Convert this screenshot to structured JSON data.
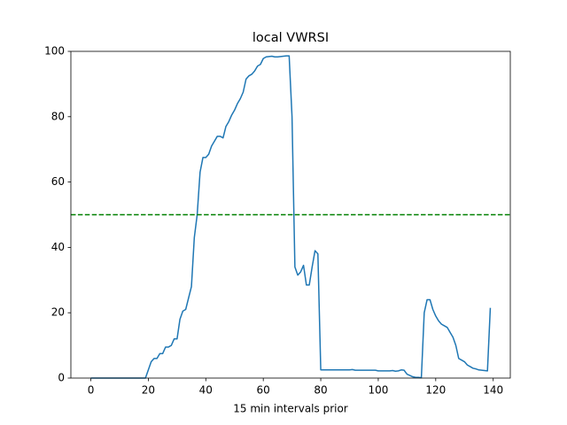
{
  "chart_data": {
    "type": "line",
    "title": "local VWRSI",
    "x_label": "15 min intervals prior",
    "x": [
      0,
      1,
      2,
      3,
      4,
      5,
      6,
      7,
      8,
      9,
      10,
      11,
      12,
      13,
      14,
      15,
      16,
      17,
      18,
      19,
      20,
      21,
      22,
      23,
      24,
      25,
      26,
      27,
      28,
      29,
      30,
      31,
      32,
      33,
      34,
      35,
      36,
      37,
      38,
      39,
      40,
      41,
      42,
      43,
      44,
      45,
      46,
      47,
      48,
      49,
      50,
      51,
      52,
      53,
      54,
      55,
      56,
      57,
      58,
      59,
      60,
      61,
      62,
      63,
      64,
      65,
      66,
      67,
      68,
      69,
      70,
      71,
      72,
      73,
      74,
      75,
      76,
      77,
      78,
      79,
      80,
      81,
      82,
      83,
      84,
      85,
      86,
      87,
      88,
      89,
      90,
      91,
      92,
      93,
      94,
      95,
      96,
      97,
      98,
      99,
      100,
      101,
      102,
      103,
      104,
      105,
      106,
      107,
      108,
      109,
      110,
      111,
      112,
      113,
      114,
      115,
      116,
      117,
      118,
      119,
      120,
      121,
      122,
      123,
      124,
      125,
      126,
      127,
      128,
      129,
      130,
      131,
      132,
      133,
      134,
      135,
      136,
      137,
      138,
      139
    ],
    "series": [
      {
        "color": "#1f77b4",
        "values": [
          0,
          0,
          0,
          0,
          0,
          0,
          0,
          0,
          0,
          0,
          0,
          0,
          0,
          0,
          0,
          0,
          0,
          0,
          0,
          0,
          2.5,
          5,
          6,
          6,
          7.5,
          7.5,
          9.5,
          9.5,
          10,
          12,
          12,
          18,
          20.5,
          21,
          24.5,
          28,
          43,
          50,
          63,
          67.5,
          67.5,
          68.5,
          71,
          72.5,
          74,
          74,
          73.5,
          77,
          78.5,
          80.5,
          82,
          84,
          85.5,
          87.5,
          91.5,
          92.5,
          93,
          94,
          95.5,
          96,
          97.8,
          98.3,
          98.4,
          98.5,
          98.3,
          98.3,
          98.4,
          98.5,
          98.6,
          98.6,
          80,
          34,
          31.5,
          32.5,
          34.5,
          28.5,
          28.5,
          34,
          39,
          38,
          2.5,
          2.5,
          2.5,
          2.5,
          2.5,
          2.5,
          2.5,
          2.5,
          2.5,
          2.5,
          2.5,
          2.6,
          2.4,
          2.4,
          2.4,
          2.4,
          2.4,
          2.4,
          2.4,
          2.4,
          2.2,
          2.2,
          2.2,
          2.2,
          2.2,
          2.3,
          2.1,
          2.2,
          2.5,
          2.4,
          1.2,
          0.8,
          0.4,
          0.2,
          0.2,
          0.1,
          20,
          24,
          24,
          21,
          19,
          17.5,
          16.5,
          16,
          15.5,
          14,
          12.5,
          10,
          6,
          5.5,
          5,
          4,
          3.5,
          3,
          2.8,
          2.5,
          2.4,
          2.3,
          2.2,
          21.5
        ]
      }
    ],
    "hline": {
      "value": 50,
      "color": "#008000",
      "style": "dashed"
    },
    "xlim": [
      -6.95,
      145.95
    ],
    "xticks": [
      0,
      20,
      40,
      60,
      80,
      100,
      120,
      140
    ],
    "ylim": [
      0,
      100
    ],
    "yticks": [
      0,
      20,
      40,
      60,
      80,
      100
    ],
    "grid": false
  }
}
